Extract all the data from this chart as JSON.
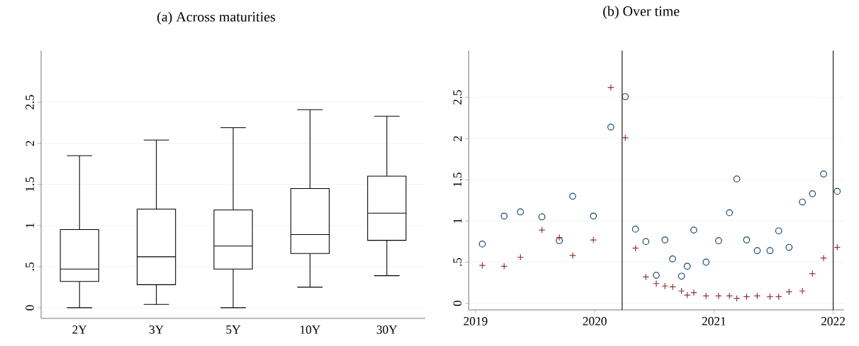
{
  "chart_data": [
    {
      "type": "box",
      "title": "(a) Across maturities",
      "categories": [
        "2Y",
        "3Y",
        "5Y",
        "10Y",
        "30Y"
      ],
      "boxes": [
        {
          "low": 0,
          "q1": 0.32,
          "median": 0.47,
          "q3": 0.95,
          "high": 1.85
        },
        {
          "low": 0.04,
          "q1": 0.28,
          "median": 0.62,
          "q3": 1.2,
          "high": 2.04
        },
        {
          "low": 0,
          "q1": 0.47,
          "median": 0.75,
          "q3": 1.19,
          "high": 2.19
        },
        {
          "low": 0.25,
          "q1": 0.66,
          "median": 0.89,
          "q3": 1.45,
          "high": 2.41
        },
        {
          "low": 0.39,
          "q1": 0.82,
          "median": 1.15,
          "q3": 1.6,
          "high": 2.33
        }
      ],
      "ylim": [
        -0.13,
        3.13
      ],
      "yticks": [
        0,
        {
          "value": 0.5,
          "label": ".5"
        },
        1,
        1.5,
        2,
        2.5
      ],
      "grid": "y"
    },
    {
      "type": "scatter",
      "title": "(b) Over time",
      "x": [
        2019.057,
        2019.24,
        2019.377,
        2019.557,
        2019.703,
        2019.815,
        2019.989,
        2020.135,
        2020.256,
        2020.342,
        2020.429,
        2020.516,
        2020.589,
        2020.653,
        2020.728,
        2020.776,
        2020.831,
        2020.934,
        2021.039,
        2021.13,
        2021.192,
        2021.274,
        2021.363,
        2021.47,
        2021.543,
        2021.63,
        2021.742,
        2021.826,
        2021.92,
        2022.034
      ],
      "series": [
        {
          "color": "#1a476f",
          "marker": "circle",
          "values": [
            0.72,
            1.06,
            1.11,
            1.05,
            0.76,
            1.3,
            1.06,
            2.14,
            2.51,
            0.9,
            0.75,
            0.34,
            0.77,
            0.54,
            0.33,
            0.45,
            0.89,
            0.5,
            0.76,
            1.1,
            1.51,
            0.77,
            0.64,
            0.64,
            0.88,
            0.68,
            1.23,
            1.33,
            1.57,
            1.36
          ]
        },
        {
          "color": "#90353b",
          "marker": "cross",
          "values": [
            0.46,
            0.45,
            0.56,
            0.89,
            0.8,
            0.58,
            0.77,
            2.62,
            2.01,
            0.67,
            0.32,
            0.24,
            0.21,
            0.2,
            0.15,
            0.1,
            0.13,
            0.09,
            0.09,
            0.09,
            0.06,
            0.08,
            0.09,
            0.08,
            0.08,
            0.14,
            0.15,
            0.36,
            0.55,
            0.68
          ]
        }
      ],
      "xlim": [
        2018.943,
        2022.09
      ],
      "xticks": [
        2019,
        2020,
        2021,
        2022
      ],
      "ylim": [
        -0.08,
        3.07
      ],
      "yticks": [
        0,
        {
          "value": 0.5,
          "label": ".5"
        },
        1,
        1.5,
        2,
        2.5
      ],
      "grid": "y",
      "ref_lines": [
        {
          "axis": "x",
          "value": 2020.23,
          "color": "#000000"
        },
        {
          "axis": "x",
          "value": 2022,
          "color": "#000000"
        }
      ]
    }
  ]
}
